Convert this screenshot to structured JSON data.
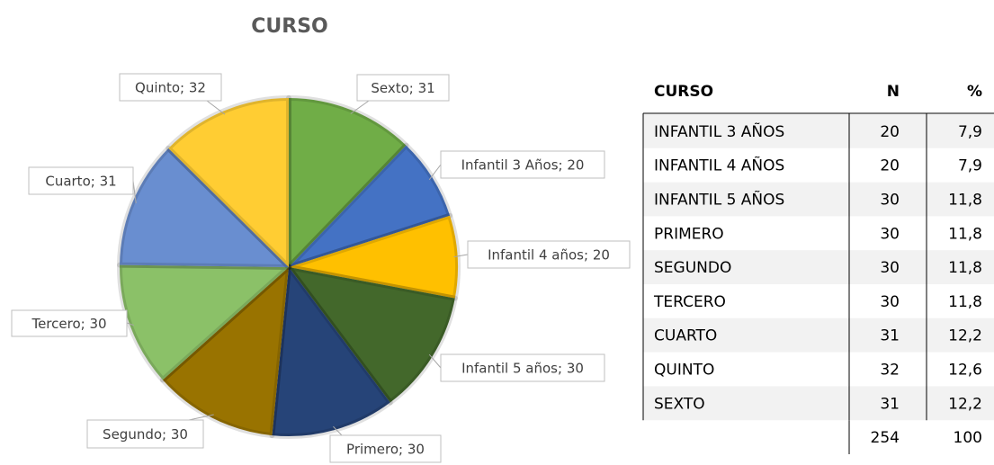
{
  "chart_data": {
    "type": "pie",
    "title": "CURSO",
    "values": [
      31,
      20,
      20,
      30,
      30,
      30,
      30,
      31,
      32
    ],
    "value_labels": [
      "Sexto; 31",
      "Infantil 3 Años; 20",
      "Infantil 4 años; 20",
      "Infantil 5 años; 30",
      "Primero; 30",
      "Segundo; 30",
      "Tercero; 30",
      "Cuarto; 31",
      "Quinto; 32"
    ],
    "colors": [
      "#70ad47",
      "#4472c4",
      "#ffc000",
      "#43682b",
      "#264478",
      "#997300",
      "#8bc168",
      "#698ed0",
      "#ffcd33"
    ]
  },
  "table": {
    "header": [
      "CURSO",
      "N",
      "%"
    ],
    "rows": [
      [
        "INFANTIL 3 AÑOS",
        20,
        "7,9"
      ],
      [
        "INFANTIL 4 AÑOS",
        20,
        "7,9"
      ],
      [
        "INFANTIL 5 AÑOS",
        30,
        "11,8"
      ],
      [
        "PRIMERO",
        30,
        "11,8"
      ],
      [
        "SEGUNDO",
        30,
        "11,8"
      ],
      [
        "TERCERO",
        30,
        "11,8"
      ],
      [
        "CUARTO",
        31,
        "12,2"
      ],
      [
        "QUINTO",
        32,
        "12,6"
      ],
      [
        "SEXTO",
        31,
        "12,2"
      ]
    ],
    "total": [
      254,
      100
    ]
  }
}
